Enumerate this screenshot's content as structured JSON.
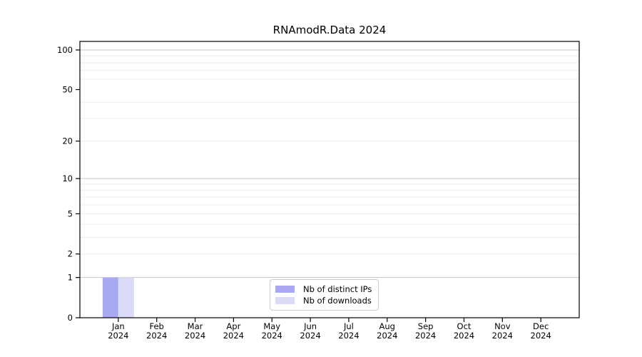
{
  "title": "RNAmodR.Data 2024",
  "chart_data": {
    "type": "bar",
    "title": "RNAmodR.Data 2024",
    "categories": [
      "Jan 2024",
      "Feb 2024",
      "Mar 2024",
      "Apr 2024",
      "May 2024",
      "Jun 2024",
      "Jul 2024",
      "Aug 2024",
      "Sep 2024",
      "Oct 2024",
      "Nov 2024",
      "Dec 2024"
    ],
    "series": [
      {
        "name": "Nb of distinct IPs",
        "color": "#a9a9f3",
        "values": [
          1,
          0,
          0,
          0,
          0,
          0,
          0,
          0,
          0,
          0,
          0,
          0
        ]
      },
      {
        "name": "Nb of downloads",
        "color": "#dbdbf7",
        "values": [
          1,
          0,
          0,
          0,
          0,
          0,
          0,
          0,
          0,
          0,
          0,
          0
        ]
      }
    ],
    "xlabel": "",
    "ylabel": "",
    "yscale": "log1p",
    "ylim": [
      0,
      116
    ],
    "yticks": [
      0,
      1,
      2,
      5,
      10,
      20,
      50,
      100
    ],
    "grid": "horizontal",
    "grid_major_values": [
      1,
      10,
      100
    ],
    "grid_minor_values": [
      2,
      3,
      4,
      5,
      6,
      7,
      8,
      9,
      20,
      30,
      40,
      60,
      70,
      80,
      90
    ],
    "legend_position": "inside bottom-center"
  },
  "legend": {
    "items": [
      {
        "label": "Nb of distinct IPs",
        "color": "#a9a9f3"
      },
      {
        "label": "Nb of downloads",
        "color": "#dbdbf7"
      }
    ]
  },
  "colors": {
    "background": "#ffffff",
    "axis": "#000000",
    "text": "#000000",
    "grid_major": "#c6c6c6",
    "grid_minor": "#ececec",
    "legend_border": "#cccccc"
  }
}
